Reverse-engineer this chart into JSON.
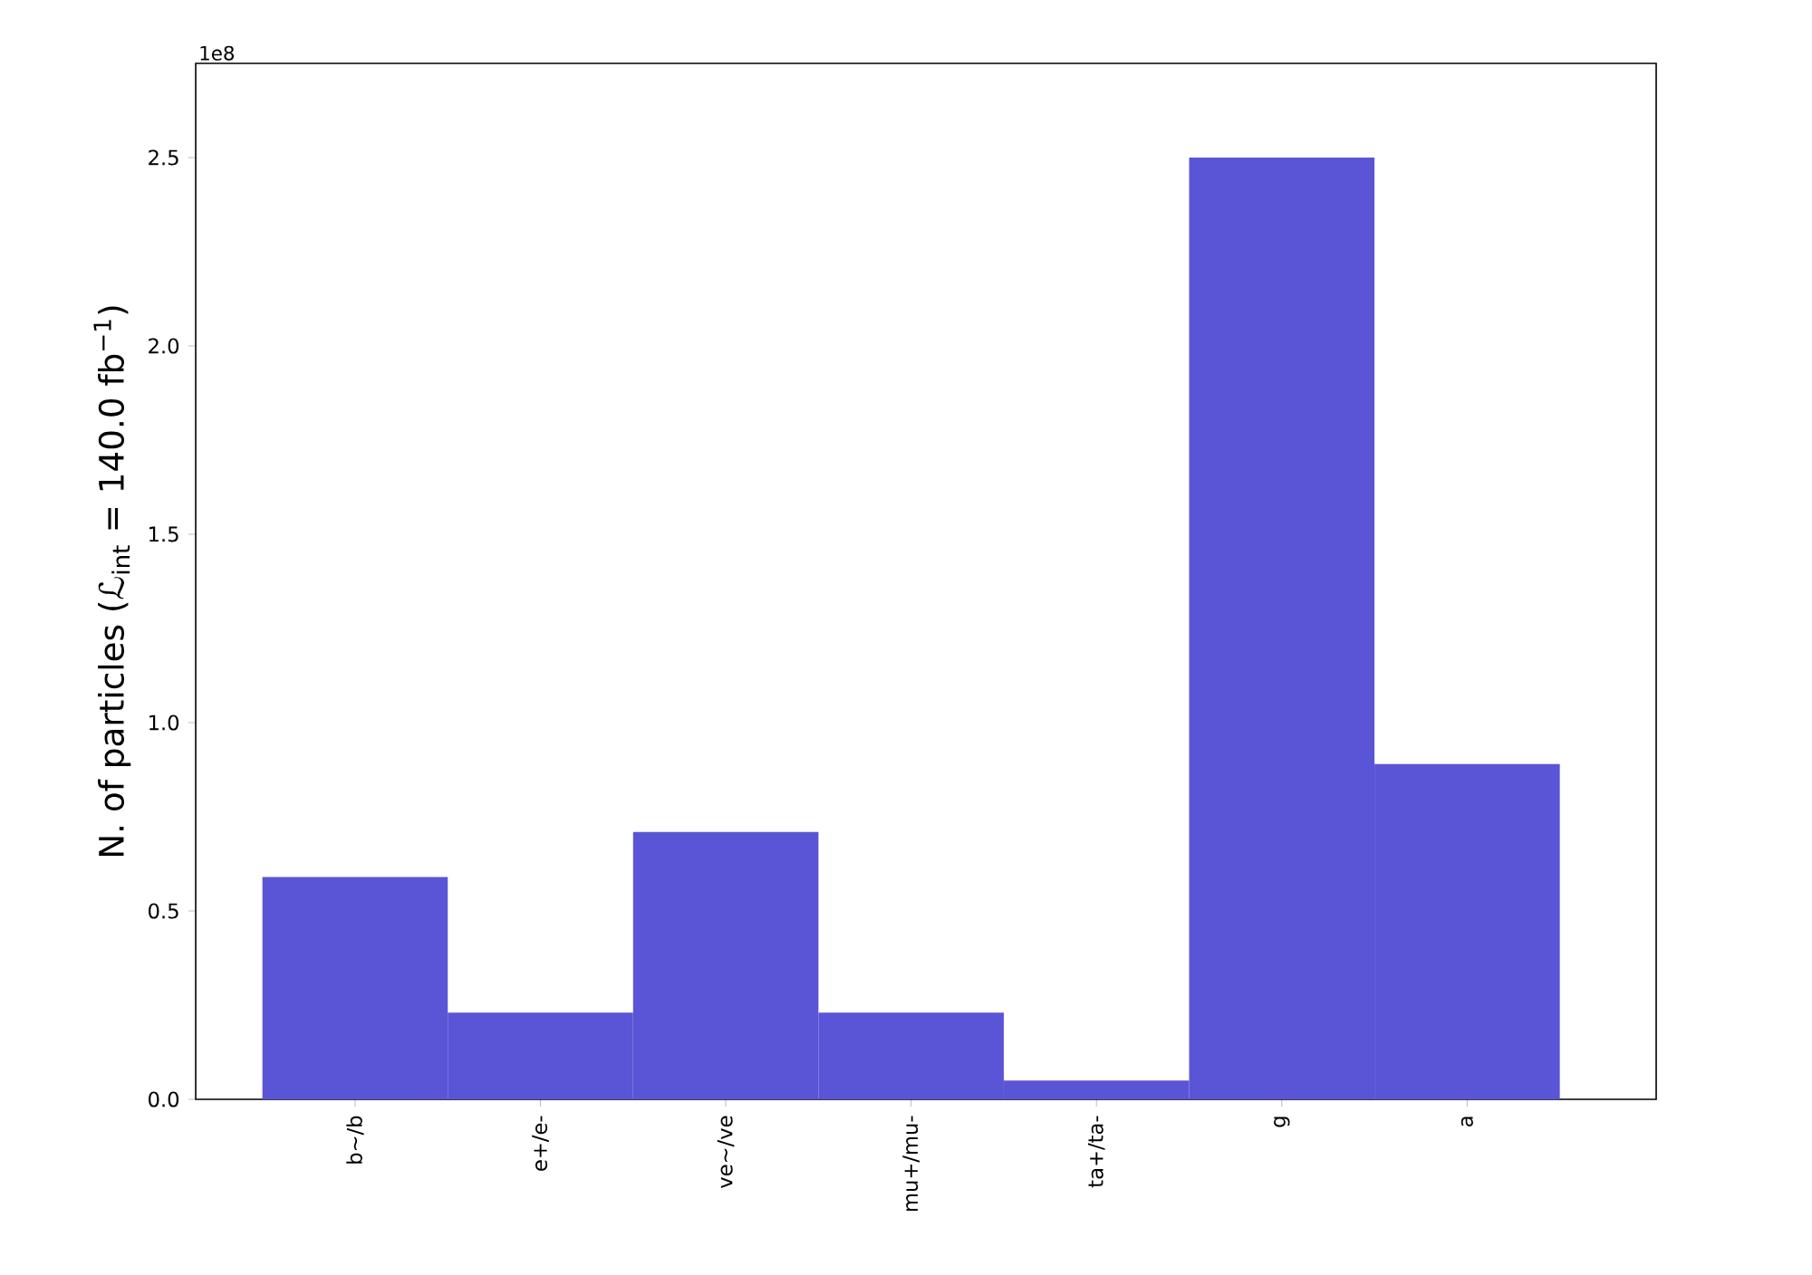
{
  "chart_data": {
    "type": "bar",
    "ylabel": "N. of particles (ℒ$_{int}$ = 140.0 fb$^{−1}$)",
    "categories": [
      "b~/b",
      "e+/e-",
      "ve~/ve",
      "mu+/mu-",
      "ta+/ta-",
      "g",
      "a"
    ],
    "values": [
      0.59,
      0.23,
      0.71,
      0.23,
      0.05,
      2.5,
      0.89
    ],
    "color": "#5a55d6",
    "ylim": [
      0,
      2.75
    ],
    "yticks": [
      {
        "value": 0,
        "label": "0.0"
      },
      0.5,
      {
        "value": 1,
        "label": "1.0"
      },
      1.5,
      {
        "value": 2,
        "label": "2.0"
      },
      2.5
    ],
    "annotations": [
      "1e8"
    ]
  }
}
